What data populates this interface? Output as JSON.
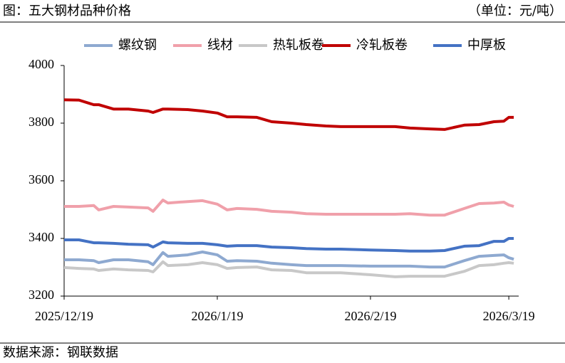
{
  "chart_data": {
    "type": "line",
    "title": "图：五大钢材品种价格",
    "unit": "（单位：元/吨）",
    "source": "数据来源：钢联数据",
    "x": [
      "2025/12/19",
      "2025/12/22",
      "2025/12/25",
      "2025/12/26",
      "2025/12/29",
      "2026/1/1",
      "2026/1/5",
      "2026/1/6",
      "2026/1/8",
      "2026/1/9",
      "2026/1/13",
      "2026/1/16",
      "2026/1/19",
      "2026/1/21",
      "2026/1/23",
      "2026/1/27",
      "2026/1/30",
      "2026/2/3",
      "2026/2/6",
      "2026/2/10",
      "2026/2/13",
      "2026/2/19",
      "2026/2/24",
      "2026/2/27",
      "2026/3/3",
      "2026/3/6",
      "2026/3/10",
      "2026/3/13",
      "2026/3/16",
      "2026/3/18",
      "2026/3/19",
      "2026/3/20"
    ],
    "xlim": [
      "2025/12/19",
      "2026/3/21"
    ],
    "xticks": [
      "2025/12/19",
      "2026/1/19",
      "2026/2/19",
      "2026/3/19"
    ],
    "ylim": [
      3200,
      4000
    ],
    "yticks": [
      3200,
      3400,
      3600,
      3800,
      4000
    ],
    "grid": false,
    "legend": "top",
    "series": [
      {
        "name": "螺纹钢",
        "color": "#8ea9d0",
        "values": [
          3326,
          3326,
          3323,
          3316,
          3326,
          3326,
          3319,
          3309,
          3351,
          3338,
          3343,
          3353,
          3343,
          3321,
          3323,
          3321,
          3314,
          3309,
          3306,
          3306,
          3306,
          3304,
          3304,
          3304,
          3301,
          3301,
          3323,
          3338,
          3341,
          3343,
          3333,
          3328
        ]
      },
      {
        "name": "线材",
        "color": "#f0a0aa",
        "values": [
          3511,
          3511,
          3514,
          3499,
          3511,
          3509,
          3506,
          3494,
          3533,
          3523,
          3528,
          3531,
          3519,
          3499,
          3504,
          3501,
          3494,
          3491,
          3486,
          3484,
          3484,
          3484,
          3484,
          3486,
          3481,
          3481,
          3504,
          3521,
          3523,
          3526,
          3516,
          3511
        ]
      },
      {
        "name": "热轧板卷",
        "color": "#c8c8c8",
        "values": [
          3299,
          3296,
          3294,
          3289,
          3294,
          3291,
          3289,
          3284,
          3319,
          3306,
          3309,
          3316,
          3309,
          3296,
          3299,
          3301,
          3291,
          3289,
          3281,
          3281,
          3281,
          3274,
          3267,
          3269,
          3269,
          3269,
          3286,
          3306,
          3309,
          3314,
          3316,
          3314
        ]
      },
      {
        "name": "冷轧板卷",
        "color": "#c00000",
        "values": [
          3881,
          3880,
          3864,
          3864,
          3849,
          3849,
          3842,
          3837,
          3849,
          3849,
          3847,
          3842,
          3835,
          3822,
          3822,
          3820,
          3805,
          3800,
          3795,
          3790,
          3788,
          3788,
          3788,
          3783,
          3780,
          3778,
          3793,
          3795,
          3805,
          3807,
          3820,
          3820
        ]
      },
      {
        "name": "中厚板",
        "color": "#4472c4",
        "values": [
          3395,
          3395,
          3385,
          3385,
          3383,
          3380,
          3378,
          3370,
          3388,
          3385,
          3383,
          3383,
          3378,
          3373,
          3375,
          3375,
          3370,
          3368,
          3365,
          3363,
          3363,
          3360,
          3358,
          3356,
          3356,
          3358,
          3373,
          3375,
          3390,
          3390,
          3400,
          3400
        ]
      }
    ]
  }
}
